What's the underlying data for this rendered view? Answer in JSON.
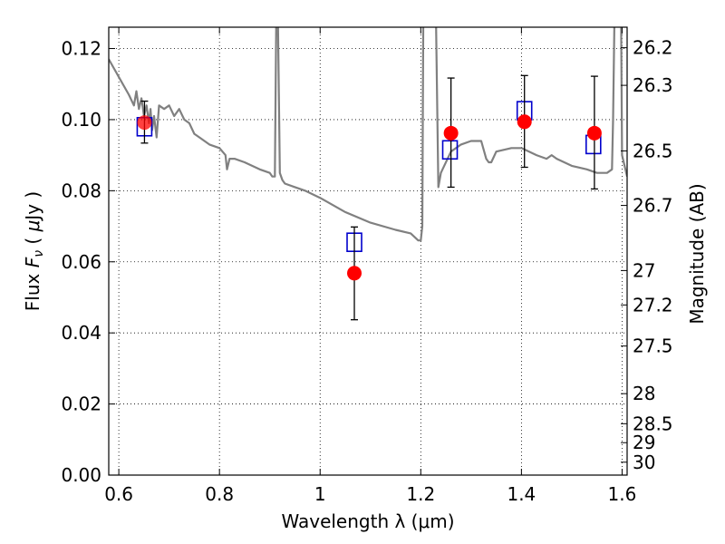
{
  "chart_data": {
    "type": "scatter",
    "xlabel": "Wavelength  λ (μm)",
    "ylabel": "Flux  F_ν  ( μJy )",
    "y2label": "Magnitude (AB)",
    "xlim": [
      0.58,
      1.61
    ],
    "ylim": [
      0.0,
      0.126
    ],
    "grid": true,
    "x_ticks": [
      {
        "v": 0.6,
        "label": "0.6"
      },
      {
        "v": 0.8,
        "label": "0.8"
      },
      {
        "v": 1.0,
        "label": "1"
      },
      {
        "v": 1.2,
        "label": "1.2"
      },
      {
        "v": 1.4,
        "label": "1.4"
      },
      {
        "v": 1.6,
        "label": "1.6"
      }
    ],
    "y_ticks": [
      {
        "v": 0.0,
        "label": "0.00"
      },
      {
        "v": 0.02,
        "label": "0.02"
      },
      {
        "v": 0.04,
        "label": "0.04"
      },
      {
        "v": 0.06,
        "label": "0.06"
      },
      {
        "v": 0.08,
        "label": "0.08"
      },
      {
        "v": 0.1,
        "label": "0.10"
      },
      {
        "v": 0.12,
        "label": "0.12"
      }
    ],
    "mag_ticks": [
      {
        "mag": 26.2,
        "label": "26.2"
      },
      {
        "mag": 26.3,
        "label": "26.3"
      },
      {
        "mag": 26.5,
        "label": "26.5"
      },
      {
        "mag": 26.7,
        "label": "26.7"
      },
      {
        "mag": 27.0,
        "label": "27"
      },
      {
        "mag": 27.2,
        "label": "27.2"
      },
      {
        "mag": 27.5,
        "label": "27.5"
      },
      {
        "mag": 28.0,
        "label": "28"
      },
      {
        "mag": 28.5,
        "label": "28.5"
      },
      {
        "mag": 29.0,
        "label": "29"
      },
      {
        "mag": 30.0,
        "label": "30"
      }
    ],
    "series": [
      {
        "kind": "line",
        "color": "#808080",
        "x": [
          0.58,
          0.6,
          0.62,
          0.63,
          0.635,
          0.64,
          0.645,
          0.65,
          0.655,
          0.66,
          0.663,
          0.666,
          0.67,
          0.675,
          0.68,
          0.69,
          0.7,
          0.71,
          0.72,
          0.73,
          0.74,
          0.75,
          0.76,
          0.78,
          0.8,
          0.812,
          0.815,
          0.82,
          0.83,
          0.85,
          0.88,
          0.9,
          0.905,
          0.91,
          0.913,
          0.916,
          0.92,
          0.925,
          0.93,
          0.95,
          0.97,
          1.0,
          1.05,
          1.1,
          1.15,
          1.18,
          1.195,
          1.2,
          1.203,
          1.205,
          1.21,
          1.215,
          1.22,
          1.225,
          1.23,
          1.235,
          1.24,
          1.26,
          1.28,
          1.3,
          1.32,
          1.33,
          1.335,
          1.34,
          1.35,
          1.38,
          1.4,
          1.43,
          1.45,
          1.46,
          1.47,
          1.5,
          1.53,
          1.55,
          1.57,
          1.58,
          1.582,
          1.585,
          1.59,
          1.595,
          1.598,
          1.6,
          1.61
        ],
        "y": [
          0.117,
          0.112,
          0.107,
          0.104,
          0.108,
          0.103,
          0.106,
          0.101,
          0.104,
          0.099,
          0.103,
          0.097,
          0.101,
          0.095,
          0.104,
          0.103,
          0.104,
          0.101,
          0.103,
          0.1,
          0.099,
          0.096,
          0.095,
          0.093,
          0.092,
          0.09,
          0.086,
          0.089,
          0.089,
          0.088,
          0.086,
          0.085,
          0.084,
          0.084,
          0.13,
          0.13,
          0.085,
          0.083,
          0.082,
          0.081,
          0.08,
          0.078,
          0.074,
          0.071,
          0.069,
          0.068,
          0.066,
          0.066,
          0.07,
          0.13,
          0.13,
          0.13,
          0.13,
          0.13,
          0.13,
          0.081,
          0.085,
          0.091,
          0.093,
          0.094,
          0.094,
          0.089,
          0.088,
          0.088,
          0.091,
          0.092,
          0.092,
          0.09,
          0.089,
          0.09,
          0.089,
          0.087,
          0.086,
          0.085,
          0.085,
          0.086,
          0.1,
          0.13,
          0.13,
          0.13,
          0.13,
          0.09,
          0.084
        ]
      },
      {
        "kind": "errorbar",
        "marker": "circle",
        "color": "#ff0000",
        "x": [
          0.651,
          1.068,
          1.26,
          1.406,
          1.545
        ],
        "y": [
          0.0992,
          0.0568,
          0.0962,
          0.0994,
          0.0962
        ],
        "yerr_low": [
          0.0934,
          0.0437,
          0.081,
          0.0866,
          0.0805
        ],
        "yerr_high": [
          0.1052,
          0.0698,
          0.1117,
          0.1124,
          0.1122
        ]
      },
      {
        "kind": "scatter",
        "marker": "square-open",
        "color": "#0000cc",
        "x": [
          0.651,
          1.068,
          1.258,
          1.406,
          1.543
        ],
        "y": [
          0.098,
          0.0655,
          0.0915,
          0.1025,
          0.093
        ]
      }
    ]
  }
}
